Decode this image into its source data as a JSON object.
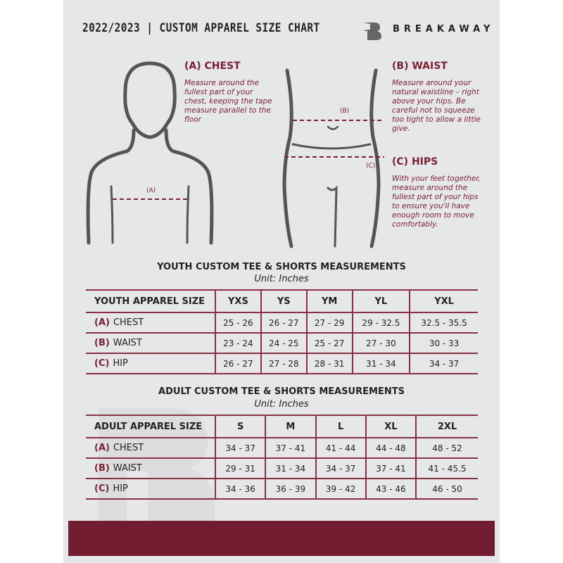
{
  "header": {
    "season": "2022/2023",
    "separator": "|",
    "title": "CUSTOM APPAREL SIZE CHART",
    "brand": "BREAKAWAY"
  },
  "colors": {
    "accent": "#721c31",
    "background": "#e6e7e8"
  },
  "measure": {
    "chest": {
      "marker": "(A)",
      "title": "(A) CHEST",
      "desc": "Measure around the fullest part of your chest, keeping the tape measure parallel to the floor"
    },
    "waist": {
      "marker": "(B)",
      "title": "(B) WAIST",
      "desc": "Measure around your natural waistline – right above your hips. Be careful not to squeeze too tight to allow a little give."
    },
    "hips": {
      "marker": "(C)",
      "title": "(C) HIPS",
      "desc": "With your feet together, measure around the fullest part of your hips to ensure you'll have enough room to move comfortably."
    }
  },
  "youth": {
    "title": "YOUTH CUSTOM TEE & SHORTS MEASUREMENTS",
    "unit": "Unit: Inches",
    "header_label": "YOUTH APPAREL SIZE",
    "sizes": [
      "YXS",
      "YS",
      "YM",
      "YL",
      "YXL"
    ],
    "rows": [
      {
        "code": "(A)",
        "label": "CHEST",
        "values": [
          "25 - 26",
          "26 - 27",
          "27 - 29",
          "29 - 32.5",
          "32.5 - 35.5"
        ]
      },
      {
        "code": "(B)",
        "label": "WAIST",
        "values": [
          "23 - 24",
          "24 - 25",
          "25 - 27",
          "27 - 30",
          "30 - 33"
        ]
      },
      {
        "code": "(C)",
        "label": "HIP",
        "values": [
          "26 - 27",
          "27 - 28",
          "28 - 31",
          "31 - 34",
          "34 - 37"
        ]
      }
    ]
  },
  "adult": {
    "title": "ADULT CUSTOM TEE & SHORTS MEASUREMENTS",
    "unit": "Unit: Inches",
    "header_label": "ADULT APPAREL SIZE",
    "sizes": [
      "S",
      "M",
      "L",
      "XL",
      "2XL"
    ],
    "rows": [
      {
        "code": "(A)",
        "label": "CHEST",
        "values": [
          "34 - 37",
          "37 - 41",
          "41 - 44",
          "44 - 48",
          "48 - 52"
        ]
      },
      {
        "code": "(B)",
        "label": "WAIST",
        "values": [
          "29 - 31",
          "31 - 34",
          "34 - 37",
          "37 - 41",
          "41 - 45.5"
        ]
      },
      {
        "code": "(C)",
        "label": "HIP",
        "values": [
          "34 - 36",
          "36 - 39",
          "39 - 42",
          "43 - 46",
          "46 - 50"
        ]
      }
    ]
  }
}
